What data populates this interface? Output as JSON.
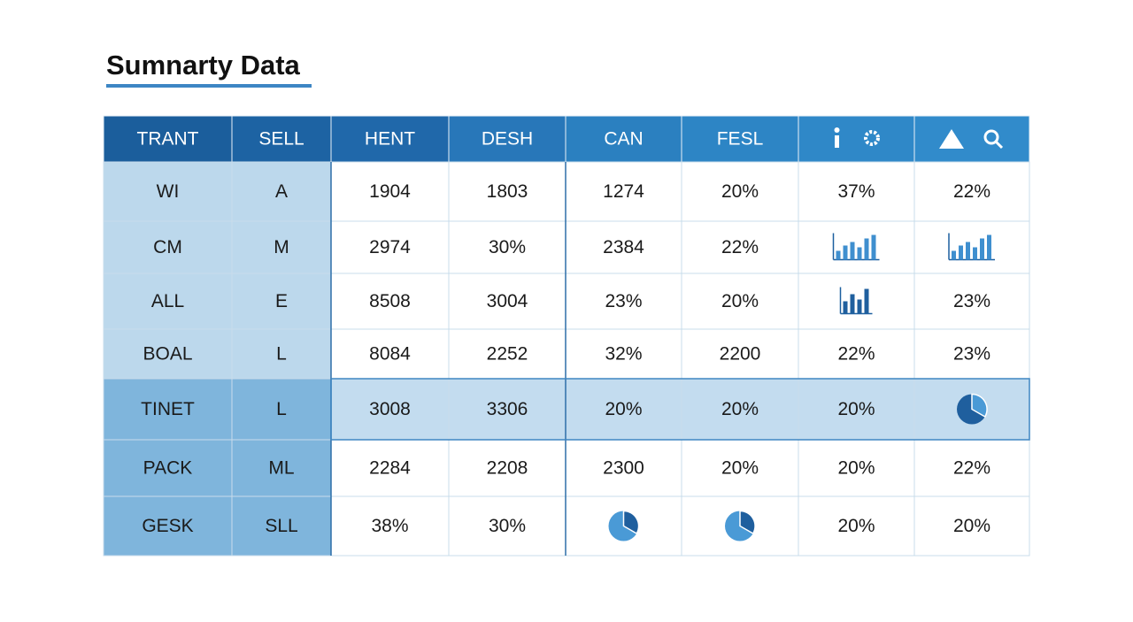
{
  "title": "Sumnarty Data",
  "table": {
    "header": [
      "TRANT",
      "SELL",
      "HENT",
      "DESH",
      "CAN",
      "FESL"
    ],
    "rows": [
      [
        "WI",
        "A",
        "1904",
        "1803",
        "1274",
        "20%",
        "37%",
        "22%"
      ],
      [
        "CM",
        "M",
        "2974",
        "30%",
        "2384",
        "22%",
        null,
        null
      ],
      [
        "ALL",
        "E",
        "8508",
        "3004",
        "23%",
        "20%",
        null,
        "23%"
      ],
      [
        "BOAL",
        "L",
        "8084",
        "2252",
        "32%",
        "2200",
        "22%",
        "23%"
      ],
      [
        "TINET",
        "L",
        "3008",
        "3306",
        "20%",
        "20%",
        "20%",
        null
      ],
      [
        "PACK",
        "ML",
        "2284",
        "2208",
        "2300",
        "20%",
        "20%",
        "22%"
      ],
      [
        "GESK",
        "SLL",
        "38%",
        "30%",
        null,
        null,
        "20%",
        "20%"
      ]
    ]
  }
}
